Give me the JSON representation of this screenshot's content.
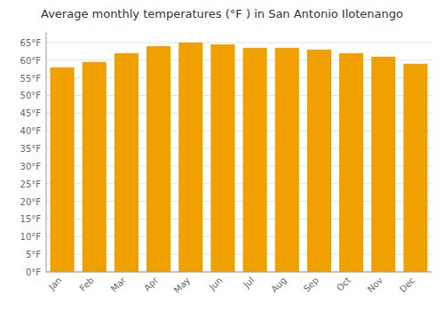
{
  "chart_data": {
    "type": "bar",
    "title": "Average monthly temperatures (°F ) in San Antonio Ilotenango",
    "categories": [
      "Jan",
      "Feb",
      "Mar",
      "Apr",
      "May",
      "Jun",
      "Jul",
      "Aug",
      "Sep",
      "Oct",
      "Nov",
      "Dec"
    ],
    "values": [
      58.0,
      59.5,
      62.0,
      64.0,
      65.0,
      64.5,
      63.5,
      63.5,
      63.0,
      62.0,
      61.0,
      59.0
    ],
    "color": "#F0A000",
    "ylim": [
      0,
      68
    ],
    "yticks": [
      {
        "value": 0,
        "label": "0°F"
      },
      {
        "value": 5,
        "label": "5°F"
      },
      {
        "value": 10,
        "label": "10°F"
      },
      {
        "value": 15,
        "label": "15°F"
      },
      {
        "value": 20,
        "label": "20°F"
      },
      {
        "value": 25,
        "label": "25°F"
      },
      {
        "value": 30,
        "label": "30°F"
      },
      {
        "value": 35,
        "label": "35°F"
      },
      {
        "value": 40,
        "label": "40°F"
      },
      {
        "value": 45,
        "label": "45°F"
      },
      {
        "value": 50,
        "label": "50°F"
      },
      {
        "value": 55,
        "label": "55°F"
      },
      {
        "value": 60,
        "label": "60°F"
      },
      {
        "value": 65,
        "label": "65°F"
      }
    ],
    "grid": true
  }
}
